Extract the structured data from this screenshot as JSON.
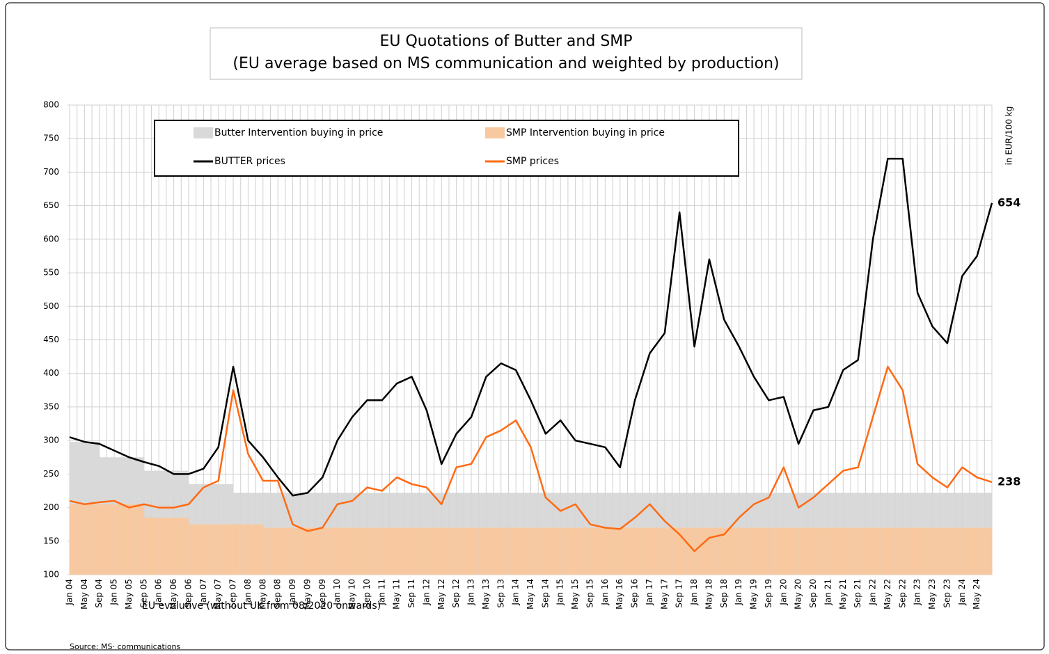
{
  "chart_data": {
    "type": "line",
    "title": "EU Quotations of Butter and SMP",
    "subtitle": "(EU average based on MS communication and weighted by production)",
    "y_axis_label": "in EUR/100 kg",
    "note": "EU evolutive (without UK from 08/2020 onwards)",
    "source": "Source: MS· communications",
    "categories": [
      "Jan 04",
      "May 04",
      "Sep 04",
      "Jan 05",
      "May 05",
      "Sep 05",
      "Jan 06",
      "May 06",
      "Sep 06",
      "Jan 07",
      "May 07",
      "Sep 07",
      "Jan 08",
      "May 08",
      "Sep 08",
      "Jan 09",
      "May 09",
      "Sep 09",
      "Jan 10",
      "May 10",
      "Sep 10",
      "Jan 11",
      "May 11",
      "Sep 11",
      "Jan 12",
      "May 12",
      "Sep 12",
      "Jan 13",
      "May 13",
      "Sep 13",
      "Jan 14",
      "May 14",
      "Sep 14",
      "Jan 15",
      "May 15",
      "Sep 15",
      "Jan 16",
      "May 16",
      "Sep 16",
      "Jan 17",
      "May 17",
      "Sep 17",
      "Jan 18",
      "May 18",
      "Sep 18",
      "Jan 19",
      "May 19",
      "Sep 19",
      "Jan 20",
      "May 20",
      "Sep 20",
      "Jan 21",
      "May 21",
      "Sep 21",
      "Jan 22",
      "May 22",
      "Sep 22",
      "Jan 23",
      "May 23",
      "Sep 23",
      "Jan 24",
      "May 24",
      null
    ],
    "series": [
      {
        "name": "Butter Intervention buying in price",
        "kind": "area",
        "color": "#d9d9d9",
        "values": [
          298,
          298,
          275,
          275,
          275,
          255,
          255,
          255,
          235,
          235,
          235,
          222,
          222,
          222,
          222,
          222,
          222,
          222,
          222,
          222,
          222,
          222,
          222,
          222,
          222,
          222,
          222,
          222,
          222,
          222,
          222,
          222,
          222,
          222,
          222,
          222,
          222,
          222,
          222,
          222,
          222,
          222,
          222,
          222,
          222,
          222,
          222,
          222,
          222,
          222,
          222,
          222,
          222,
          222,
          222,
          222,
          222,
          222,
          222,
          222,
          222,
          222,
          222
        ]
      },
      {
        "name": "SMP Intervention buying in price",
        "kind": "area",
        "color": "#f8c9a0",
        "values": [
          205,
          205,
          205,
          205,
          205,
          185,
          185,
          185,
          175,
          175,
          175,
          175,
          175,
          170,
          170,
          170,
          170,
          170,
          170,
          170,
          170,
          170,
          170,
          170,
          170,
          170,
          170,
          170,
          170,
          170,
          170,
          170,
          170,
          170,
          170,
          170,
          170,
          170,
          170,
          170,
          170,
          170,
          170,
          170,
          170,
          170,
          170,
          170,
          170,
          170,
          170,
          170,
          170,
          170,
          170,
          170,
          170,
          170,
          170,
          170,
          170,
          170,
          170
        ]
      },
      {
        "name": "BUTTER prices",
        "kind": "line",
        "color": "#000000",
        "values": [
          305,
          298,
          295,
          285,
          275,
          268,
          262,
          250,
          250,
          258,
          290,
          410,
          300,
          275,
          245,
          218,
          222,
          245,
          300,
          335,
          360,
          360,
          385,
          395,
          345,
          265,
          310,
          335,
          395,
          415,
          405,
          360,
          310,
          330,
          300,
          295,
          290,
          260,
          360,
          430,
          460,
          640,
          440,
          570,
          480,
          440,
          395,
          360,
          365,
          295,
          345,
          350,
          405,
          420,
          600,
          720,
          720,
          520,
          470,
          445,
          545,
          575,
          654
        ]
      },
      {
        "name": "SMP prices",
        "kind": "line",
        "color": "#ff6a13",
        "values": [
          210,
          205,
          208,
          210,
          200,
          205,
          200,
          200,
          205,
          230,
          240,
          375,
          280,
          240,
          240,
          175,
          165,
          170,
          205,
          210,
          230,
          225,
          245,
          235,
          230,
          205,
          260,
          265,
          305,
          315,
          330,
          290,
          215,
          195,
          205,
          175,
          170,
          168,
          185,
          205,
          180,
          160,
          135,
          155,
          160,
          185,
          205,
          215,
          260,
          200,
          215,
          235,
          255,
          260,
          335,
          410,
          375,
          265,
          245,
          230,
          260,
          245,
          238
        ]
      }
    ],
    "ylim": [
      100,
      800
    ],
    "yticks": [
      100,
      150,
      200,
      250,
      300,
      350,
      400,
      450,
      500,
      550,
      600,
      650,
      700,
      750,
      800
    ],
    "grid": true
  }
}
